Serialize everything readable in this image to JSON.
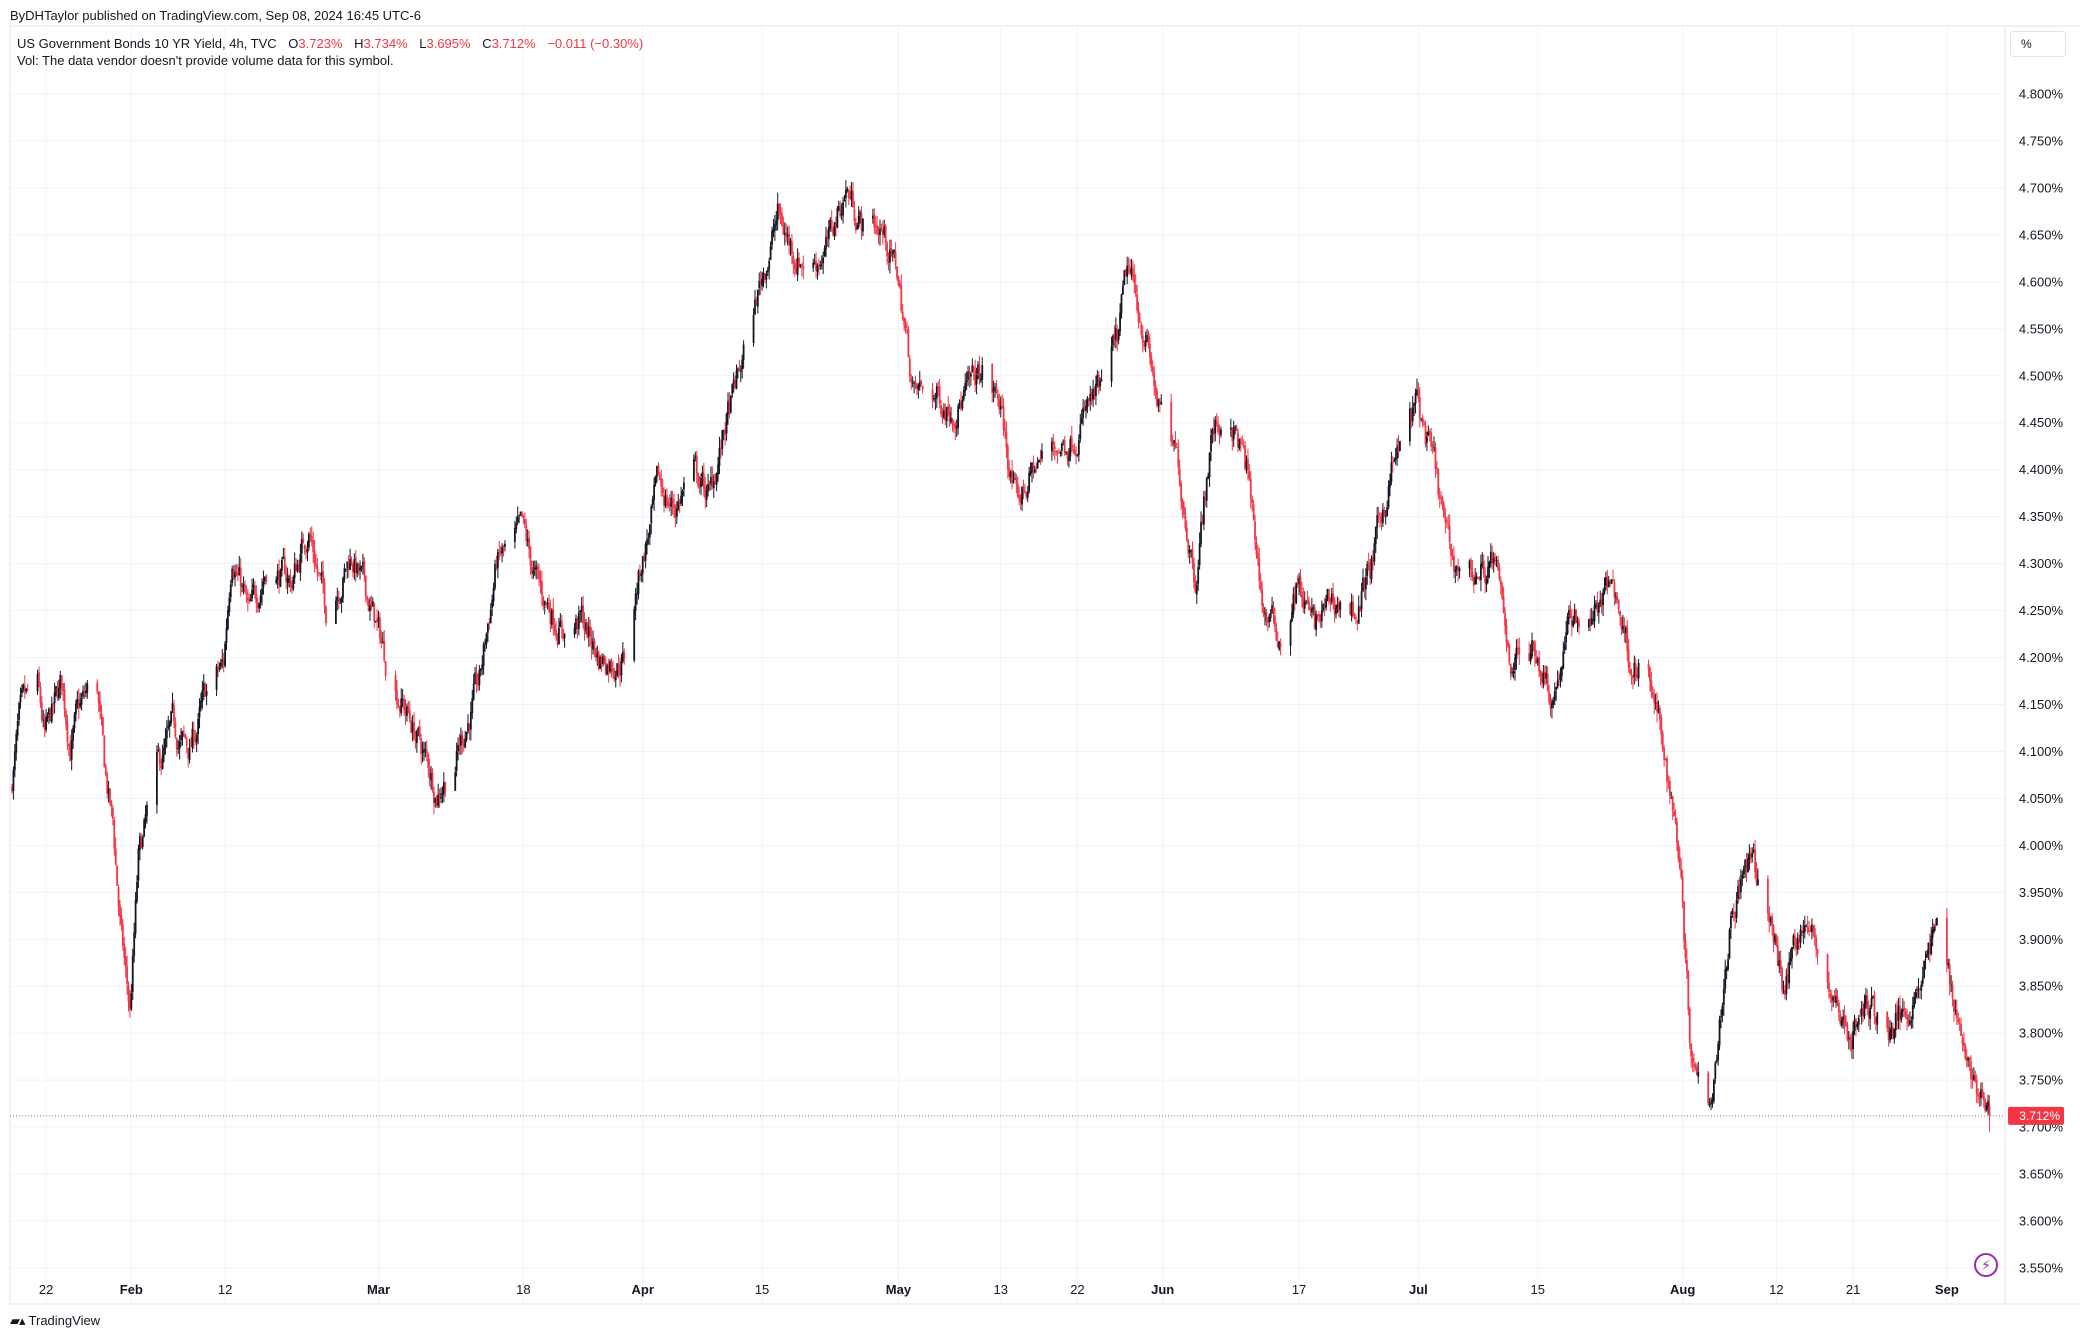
{
  "header": {
    "published": "ByDHTaylor published on TradingView.com, Sep 08, 2024 16:45 UTC-6",
    "symbol": "US Government Bonds 10 YR Yield, 4h, TVC",
    "open_label": "O",
    "open_value": "3.723%",
    "high_label": "H",
    "high_value": "3.734%",
    "low_label": "L",
    "low_value": "3.695%",
    "close_label": "C",
    "close_value": "3.712%",
    "change_value": "−0.011 (−0.30%)",
    "vol_note": "Vol: The data vendor doesn't provide volume data for this symbol."
  },
  "toolbar": {
    "unit_label": "%"
  },
  "footer": {
    "brand": "TradingView"
  },
  "colors": {
    "up": "#131722",
    "down": "#f23645",
    "grid": "#f0f3fa",
    "last_price": "#f23645"
  },
  "chart_data": {
    "type": "candlestick",
    "title": "US Government Bonds 10 YR Yield, 4h, TVC",
    "timeframe": "4h",
    "y_unit": "%",
    "ylim": [
      3.55,
      4.8
    ],
    "yticks": [
      3.55,
      3.6,
      3.65,
      3.7,
      3.75,
      3.8,
      3.85,
      3.9,
      3.95,
      4.0,
      4.05,
      4.1,
      4.15,
      4.2,
      4.25,
      4.3,
      4.35,
      4.4,
      4.45,
      4.5,
      4.55,
      4.6,
      4.65,
      4.7,
      4.75,
      4.8
    ],
    "ytick_labels": [
      "3.550%",
      "3.600%",
      "3.650%",
      "3.700%",
      "3.750%",
      "3.800%",
      "3.850%",
      "3.900%",
      "3.950%",
      "4.000%",
      "4.050%",
      "4.100%",
      "4.150%",
      "4.200%",
      "4.250%",
      "4.300%",
      "4.350%",
      "4.400%",
      "4.450%",
      "4.500%",
      "4.550%",
      "4.600%",
      "4.650%",
      "4.700%",
      "4.750%",
      "4.800%"
    ],
    "xlim": [
      "2024-01-18",
      "2024-09-07"
    ],
    "xticks": [
      {
        "date": "2024-01-22",
        "label": "22"
      },
      {
        "date": "2024-02-01",
        "label": "Feb"
      },
      {
        "date": "2024-02-12",
        "label": "12"
      },
      {
        "date": "2024-03-01",
        "label": "Mar"
      },
      {
        "date": "2024-03-18",
        "label": "18"
      },
      {
        "date": "2024-04-01",
        "label": "Apr"
      },
      {
        "date": "2024-04-15",
        "label": "15"
      },
      {
        "date": "2024-05-01",
        "label": "May"
      },
      {
        "date": "2024-05-13",
        "label": "13"
      },
      {
        "date": "2024-05-22",
        "label": "22"
      },
      {
        "date": "2024-06-01",
        "label": "Jun"
      },
      {
        "date": "2024-06-17",
        "label": "17"
      },
      {
        "date": "2024-07-01",
        "label": "Jul"
      },
      {
        "date": "2024-07-15",
        "label": "15"
      },
      {
        "date": "2024-08-01",
        "label": "Aug"
      },
      {
        "date": "2024-08-12",
        "label": "12"
      },
      {
        "date": "2024-08-21",
        "label": "21"
      },
      {
        "date": "2024-09-01",
        "label": "Sep"
      }
    ],
    "path": [
      [
        "2024-01-18",
        4.06
      ],
      [
        "2024-01-19",
        4.13
      ],
      [
        "2024-01-21",
        4.17
      ],
      [
        "2024-01-22",
        4.11
      ],
      [
        "2024-01-24",
        4.17
      ],
      [
        "2024-01-25",
        4.11
      ],
      [
        "2024-01-26",
        4.14
      ],
      [
        "2024-01-28",
        4.18
      ],
      [
        "2024-01-29",
        4.08
      ],
      [
        "2024-01-30",
        4.02
      ],
      [
        "2024-01-31",
        3.9
      ],
      [
        "2024-02-01",
        3.82
      ],
      [
        "2024-02-02",
        3.98
      ],
      [
        "2024-02-04",
        4.07
      ],
      [
        "2024-02-06",
        4.12
      ],
      [
        "2024-02-08",
        4.1
      ],
      [
        "2024-02-10",
        4.16
      ],
      [
        "2024-02-12",
        4.19
      ],
      [
        "2024-02-13",
        4.32
      ],
      [
        "2024-02-15",
        4.24
      ],
      [
        "2024-02-17",
        4.3
      ],
      [
        "2024-02-20",
        4.28
      ],
      [
        "2024-02-22",
        4.34
      ],
      [
        "2024-02-24",
        4.25
      ],
      [
        "2024-02-27",
        4.31
      ],
      [
        "2024-02-29",
        4.26
      ],
      [
        "2024-03-02",
        4.2
      ],
      [
        "2024-03-05",
        4.13
      ],
      [
        "2024-03-08",
        4.06
      ],
      [
        "2024-03-10",
        4.09
      ],
      [
        "2024-03-13",
        4.17
      ],
      [
        "2024-03-15",
        4.3
      ],
      [
        "2024-03-18",
        4.33
      ],
      [
        "2024-03-20",
        4.27
      ],
      [
        "2024-03-23",
        4.23
      ],
      [
        "2024-03-25",
        4.24
      ],
      [
        "2024-03-27",
        4.2
      ],
      [
        "2024-03-30",
        4.2
      ],
      [
        "2024-04-01",
        4.3
      ],
      [
        "2024-04-03",
        4.38
      ],
      [
        "2024-04-05",
        4.36
      ],
      [
        "2024-04-07",
        4.4
      ],
      [
        "2024-04-09",
        4.37
      ],
      [
        "2024-04-11",
        4.45
      ],
      [
        "2024-04-13",
        4.52
      ],
      [
        "2024-04-15",
        4.6
      ],
      [
        "2024-04-17",
        4.67
      ],
      [
        "2024-04-19",
        4.63
      ],
      [
        "2024-04-21",
        4.62
      ],
      [
        "2024-04-23",
        4.64
      ],
      [
        "2024-04-25",
        4.7
      ],
      [
        "2024-04-27",
        4.66
      ],
      [
        "2024-04-29",
        4.66
      ],
      [
        "2024-05-01",
        4.61
      ],
      [
        "2024-05-03",
        4.48
      ],
      [
        "2024-05-05",
        4.48
      ],
      [
        "2024-05-07",
        4.47
      ],
      [
        "2024-05-09",
        4.48
      ],
      [
        "2024-05-11",
        4.5
      ],
      [
        "2024-05-13",
        4.47
      ],
      [
        "2024-05-15",
        4.36
      ],
      [
        "2024-05-17",
        4.4
      ],
      [
        "2024-05-19",
        4.42
      ],
      [
        "2024-05-21",
        4.43
      ],
      [
        "2024-05-23",
        4.46
      ],
      [
        "2024-05-25",
        4.48
      ],
      [
        "2024-05-27",
        4.54
      ],
      [
        "2024-05-28",
        4.61
      ],
      [
        "2024-05-30",
        4.55
      ],
      [
        "2024-06-01",
        4.45
      ],
      [
        "2024-06-03",
        4.4
      ],
      [
        "2024-06-05",
        4.29
      ],
      [
        "2024-06-07",
        4.44
      ],
      [
        "2024-06-09",
        4.46
      ],
      [
        "2024-06-11",
        4.4
      ],
      [
        "2024-06-13",
        4.25
      ],
      [
        "2024-06-15",
        4.22
      ],
      [
        "2024-06-17",
        4.28
      ],
      [
        "2024-06-19",
        4.23
      ],
      [
        "2024-06-21",
        4.26
      ],
      [
        "2024-06-24",
        4.25
      ],
      [
        "2024-06-26",
        4.31
      ],
      [
        "2024-06-28",
        4.4
      ],
      [
        "2024-07-01",
        4.47
      ],
      [
        "2024-07-03",
        4.4
      ],
      [
        "2024-07-05",
        4.3
      ],
      [
        "2024-07-08",
        4.29
      ],
      [
        "2024-07-10",
        4.3
      ],
      [
        "2024-07-12",
        4.2
      ],
      [
        "2024-07-15",
        4.21
      ],
      [
        "2024-07-17",
        4.16
      ],
      [
        "2024-07-19",
        4.24
      ],
      [
        "2024-07-22",
        4.25
      ],
      [
        "2024-07-24",
        4.28
      ],
      [
        "2024-07-26",
        4.2
      ],
      [
        "2024-07-28",
        4.18
      ],
      [
        "2024-07-30",
        4.1
      ],
      [
        "2024-08-01",
        3.98
      ],
      [
        "2024-08-02",
        3.8
      ],
      [
        "2024-08-04",
        3.72
      ],
      [
        "2024-08-05",
        3.78
      ],
      [
        "2024-08-07",
        3.94
      ],
      [
        "2024-08-09",
        3.98
      ],
      [
        "2024-08-11",
        3.94
      ],
      [
        "2024-08-13",
        3.85
      ],
      [
        "2024-08-15",
        3.92
      ],
      [
        "2024-08-17",
        3.89
      ],
      [
        "2024-08-19",
        3.83
      ],
      [
        "2024-08-21",
        3.8
      ],
      [
        "2024-08-23",
        3.83
      ],
      [
        "2024-08-25",
        3.8
      ],
      [
        "2024-08-27",
        3.82
      ],
      [
        "2024-08-29",
        3.86
      ],
      [
        "2024-08-31",
        3.91
      ],
      [
        "2024-09-02",
        3.84
      ],
      [
        "2024-09-04",
        3.76
      ],
      [
        "2024-09-05",
        3.73
      ],
      [
        "2024-09-06",
        3.712
      ]
    ],
    "last_price": 3.712,
    "last_price_label": "3.712%"
  }
}
